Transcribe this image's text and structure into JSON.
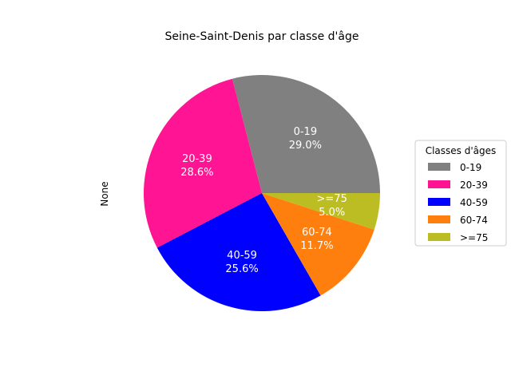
{
  "chart_data": {
    "type": "pie",
    "title": "Seine-Saint-Denis par classe d'âge",
    "ylabel": "None",
    "legend_title": "Classes d'âges",
    "legend_position": "right",
    "slices": [
      {
        "label": "0-19",
        "pct_text": "29.0%",
        "value": 29.0,
        "color": "#808080"
      },
      {
        "label": "20-39",
        "pct_text": "28.6%",
        "value": 28.6,
        "color": "#ff1493"
      },
      {
        "label": "40-59",
        "pct_text": "25.6%",
        "value": 25.6,
        "color": "#0000ff"
      },
      {
        "label": "60-74",
        "pct_text": "11.7%",
        "value": 11.7,
        "color": "#ff7f0e"
      },
      {
        "label": ">=75",
        "pct_text": "5.0%",
        "value": 5.0,
        "color": "#bcbd22"
      }
    ]
  }
}
